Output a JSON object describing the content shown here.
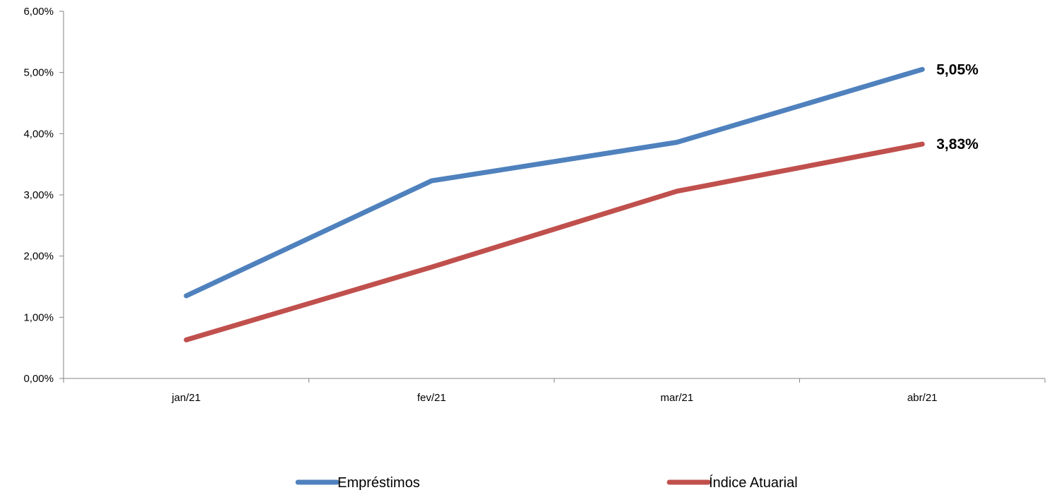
{
  "chart_data": {
    "type": "line",
    "categories": [
      "jan/21",
      "fev/21",
      "mar/21",
      "abr/21"
    ],
    "series": [
      {
        "name": "Empréstimos",
        "color": "#4F81BD",
        "values": [
          1.35,
          3.23,
          3.86,
          5.05
        ]
      },
      {
        "name": "Índice Atuarial",
        "color": "#C0504D",
        "values": [
          0.63,
          1.82,
          3.06,
          3.83
        ]
      }
    ],
    "data_labels": [
      {
        "series": 0,
        "index": 3,
        "text": "5,05%"
      },
      {
        "series": 1,
        "index": 3,
        "text": "3,83%"
      }
    ],
    "y_ticks": [
      0,
      1,
      2,
      3,
      4,
      5,
      6
    ],
    "y_tick_labels": [
      "0,00%",
      "1,00%",
      "2,00%",
      "3,00%",
      "4,00%",
      "5,00%",
      "6,00%"
    ],
    "ylim": [
      0,
      6
    ],
    "grid": false,
    "legend": "bottom"
  }
}
